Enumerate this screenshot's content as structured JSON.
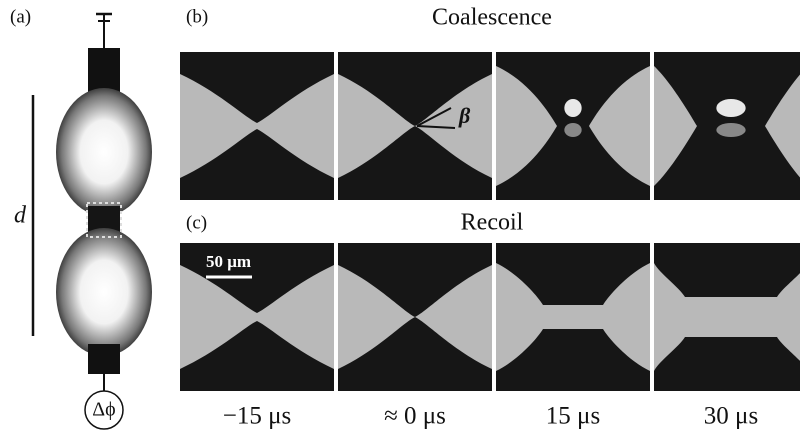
{
  "panels": {
    "a": {
      "label": "(a)",
      "distance": "d",
      "potential": "Δϕ"
    },
    "b": {
      "label": "(b)",
      "title": "Coalescence",
      "angle": "β"
    },
    "c": {
      "label": "(c)",
      "title": "Recoil",
      "scale_bar": "50 μm"
    }
  },
  "times": [
    "−15 μs",
    "≈ 0 μs",
    "15 μs",
    "30 μs"
  ]
}
